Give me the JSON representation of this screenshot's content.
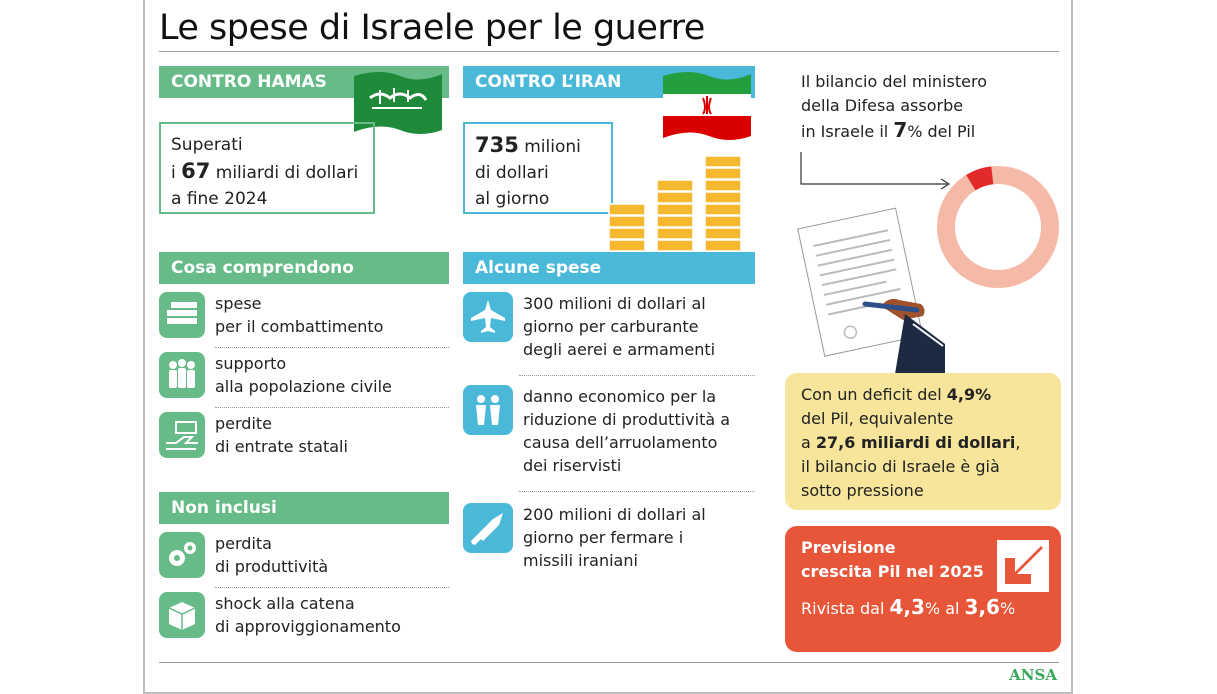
{
  "title": "Le spese di Israele per le guerre",
  "hamas": {
    "header": "CONTRO HAMAS",
    "line1": "Superati",
    "line2_pre": "i ",
    "line2_num": "67",
    "line2_post": " miliardi di dollari",
    "line3": "a fine 2024"
  },
  "iran": {
    "header": "CONTRO L’IRAN",
    "num": "735",
    "line1_post": " milioni",
    "line2": "di dollari",
    "line3": "al giorno"
  },
  "comprendono": {
    "header": "Cosa comprendono",
    "items": [
      {
        "l1": "spese",
        "l2": "per il combattimento",
        "icon": "money-stack-icon"
      },
      {
        "l1": "supporto",
        "l2": "alla popolazione civile",
        "icon": "people-icon"
      },
      {
        "l1": "perdite",
        "l2": "di entrate statali",
        "icon": "hand-cash-icon"
      }
    ]
  },
  "non_inclusi": {
    "header": "Non inclusi",
    "items": [
      {
        "l1": "perdita",
        "l2": "di produttività",
        "icon": "gears-icon"
      },
      {
        "l1": "shock alla catena",
        "l2": "di approviggionamento",
        "icon": "box-icon"
      }
    ]
  },
  "alcune_spese": {
    "header": "Alcune spese",
    "items": [
      {
        "lines": [
          "300 milioni di dollari al",
          "giorno per carburante",
          "degli aerei e armamenti"
        ],
        "icon": "jet-icon"
      },
      {
        "lines": [
          "danno economico per la",
          "riduzione di produttività a",
          "causa dell’arruolamento",
          "dei riservisti"
        ],
        "icon": "soldiers-icon"
      },
      {
        "lines": [
          "200 milioni di dollari al",
          "giorno per fermare i",
          "missili iraniani"
        ],
        "icon": "missile-icon"
      }
    ]
  },
  "bilancio": {
    "l1": "Il bilancio del ministero",
    "l2": "della Difesa assorbe",
    "l3_pre": "in Israele il ",
    "l3_num": "7",
    "l3_post": "% del Pil",
    "share_pct": 7
  },
  "deficit": {
    "l1_pre": "Con un deficit del ",
    "l1_b": "4,9%",
    "l2": "del Pil, equivalente",
    "l3_pre": "a ",
    "l3_b": "27,6 miliardi di dollari",
    "l3_post": ",",
    "l4": "il bilancio di Israele è già",
    "l5": "sotto pressione"
  },
  "previsione": {
    "h1": "Previsione",
    "h2": "crescita Pil nel 2025",
    "r_pre": "Rivista dal ",
    "r_a": "4,3",
    "r_mid": "% al ",
    "r_b": "3,6",
    "r_post": "%"
  },
  "source": "ANSA",
  "colors": {
    "green": "#66bb88",
    "blue": "#4ab8d8",
    "red": "#e8563a",
    "yellow": "#f6e59a",
    "donut_light": "#f5b9a8",
    "donut_dark": "#e22a2a"
  }
}
